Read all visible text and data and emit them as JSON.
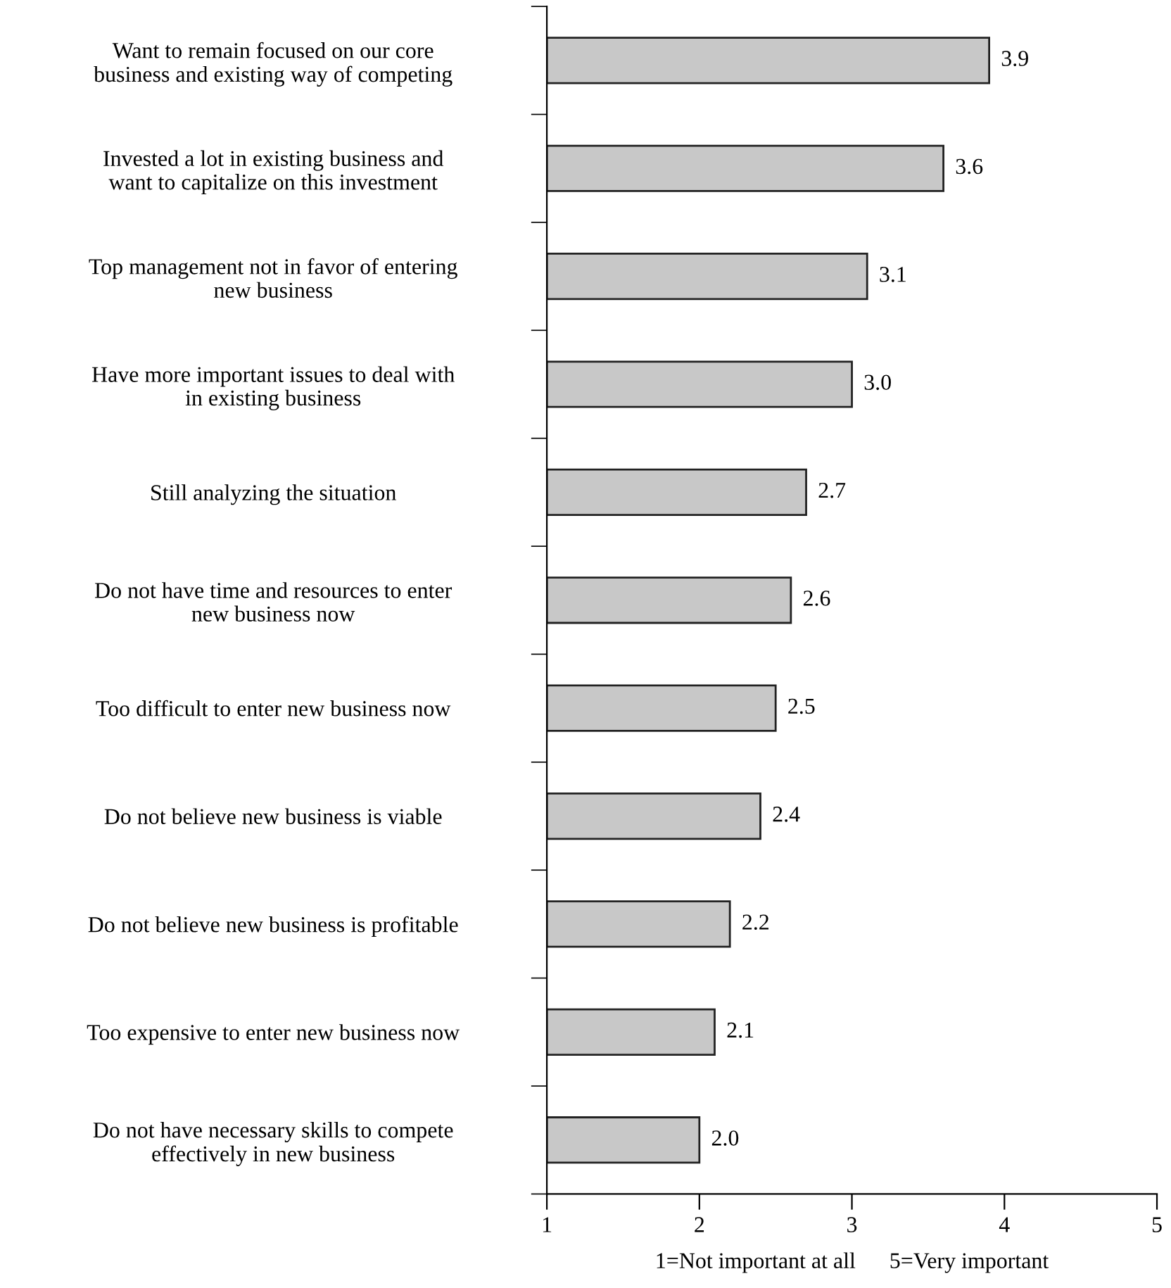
{
  "chart_data": {
    "type": "bar",
    "orientation": "horizontal",
    "categories": [
      "Want to remain focused on our core\nbusiness and existing way of competing",
      "Invested a lot in existing business and\nwant to capitalize on this investment",
      "Top management not in favor of entering\nnew business",
      "Have more important issues to deal with\nin existing business",
      "Still analyzing the situation",
      "Do not have time and resources to enter\nnew business now",
      "Too difficult to enter new business now",
      "Do not believe new business is viable",
      "Do not believe new business is profitable",
      "Too expensive to enter new business now",
      "Do not have necessary skills to compete\neffectively in new business"
    ],
    "values": [
      3.9,
      3.6,
      3.1,
      3.0,
      2.7,
      2.6,
      2.5,
      2.4,
      2.2,
      2.1,
      2.0
    ],
    "value_labels": [
      "3.9",
      "3.6",
      "3.1",
      "3.0",
      "2.7",
      "2.6",
      "2.5",
      "2.4",
      "2.2",
      "2.1",
      "2.0"
    ],
    "color": "#c8c8c8",
    "xlim": [
      1,
      5
    ],
    "xticks": [
      1,
      2,
      3,
      4,
      5
    ],
    "xlabel": "1=Not important at all      5=Very important",
    "grid": false,
    "legend": false
  }
}
